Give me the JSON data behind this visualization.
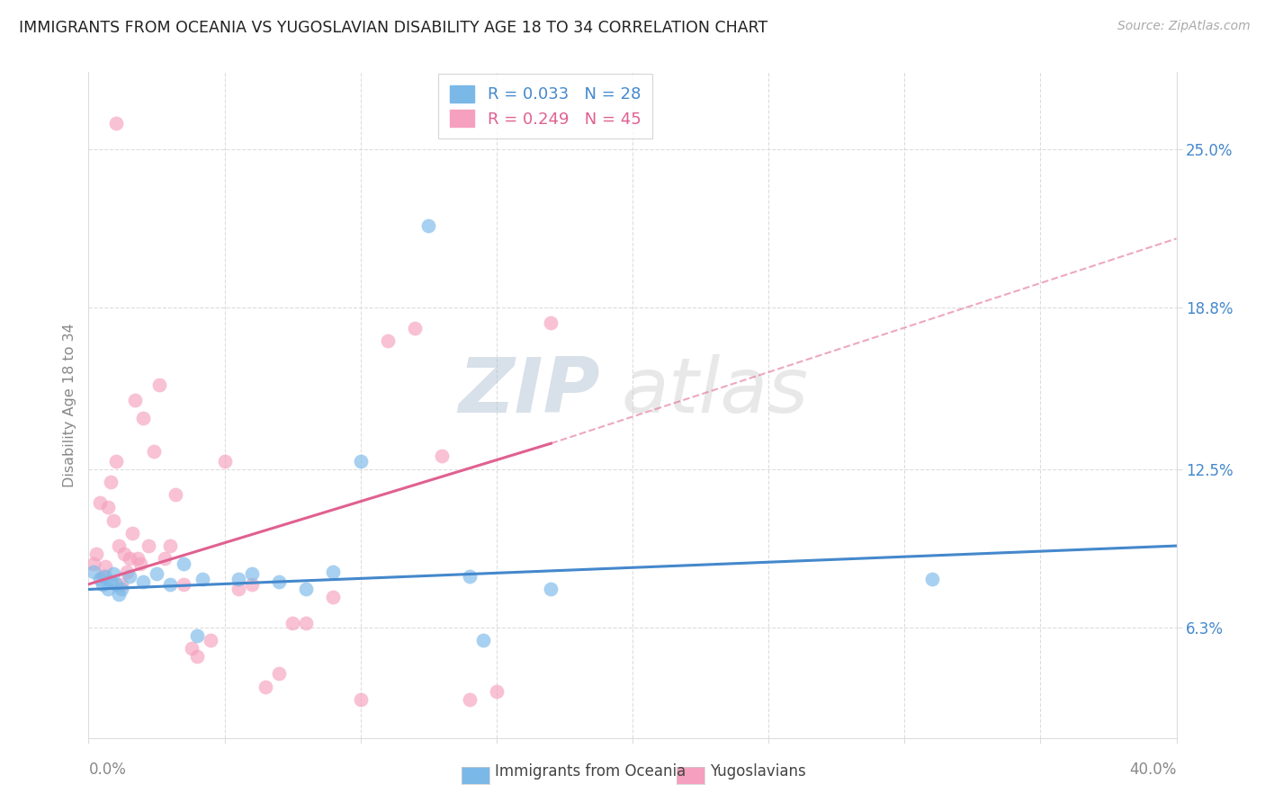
{
  "title": "IMMIGRANTS FROM OCEANIA VS YUGOSLAVIAN DISABILITY AGE 18 TO 34 CORRELATION CHART",
  "source": "Source: ZipAtlas.com",
  "ylabel": "Disability Age 18 to 34",
  "ytick_labels": [
    "6.3%",
    "12.5%",
    "18.8%",
    "25.0%"
  ],
  "ytick_values": [
    6.3,
    12.5,
    18.8,
    25.0
  ],
  "xlim": [
    0.0,
    40.0
  ],
  "ylim": [
    2.0,
    28.0
  ],
  "watermark_zip": "ZIP",
  "watermark_atlas": "atlas",
  "blue_color": "#7ab8e8",
  "pink_color": "#f5a0be",
  "blue_line_color": "#4488cc",
  "pink_line_color": "#e06090",
  "blue_scatter_x": [
    0.2,
    0.4,
    0.5,
    0.6,
    0.7,
    0.8,
    0.9,
    1.0,
    1.1,
    1.2,
    1.5,
    2.0,
    2.5,
    3.0,
    3.5,
    4.2,
    5.5,
    6.0,
    7.0,
    8.0,
    9.0,
    10.0,
    12.5,
    14.0,
    14.5,
    17.0,
    31.0,
    4.0
  ],
  "blue_scatter_y": [
    8.5,
    8.2,
    8.0,
    8.3,
    7.8,
    8.1,
    8.4,
    8.0,
    7.6,
    7.8,
    8.3,
    8.1,
    8.4,
    8.0,
    8.8,
    8.2,
    8.2,
    8.4,
    8.1,
    7.8,
    8.5,
    12.8,
    22.0,
    8.3,
    5.8,
    7.8,
    8.2,
    6.0
  ],
  "pink_scatter_x": [
    0.2,
    0.3,
    0.4,
    0.5,
    0.6,
    0.7,
    0.8,
    0.9,
    1.0,
    1.1,
    1.2,
    1.3,
    1.4,
    1.5,
    1.6,
    1.7,
    1.8,
    1.9,
    2.0,
    2.2,
    2.4,
    2.6,
    2.8,
    3.0,
    3.2,
    3.5,
    3.8,
    4.0,
    4.5,
    5.0,
    5.5,
    6.0,
    6.5,
    7.0,
    7.5,
    8.0,
    9.0,
    10.0,
    11.0,
    12.0,
    13.0,
    14.0,
    15.0,
    1.0,
    17.0
  ],
  "pink_scatter_y": [
    8.8,
    9.2,
    11.2,
    8.3,
    8.7,
    11.0,
    12.0,
    10.5,
    12.8,
    9.5,
    8.0,
    9.2,
    8.5,
    9.0,
    10.0,
    15.2,
    9.0,
    8.8,
    14.5,
    9.5,
    13.2,
    15.8,
    9.0,
    9.5,
    11.5,
    8.0,
    5.5,
    5.2,
    5.8,
    12.8,
    7.8,
    8.0,
    4.0,
    4.5,
    6.5,
    6.5,
    7.5,
    3.5,
    17.5,
    18.0,
    13.0,
    3.5,
    3.8,
    26.0,
    18.2
  ],
  "blue_line_x": [
    0.0,
    40.0
  ],
  "blue_line_y": [
    7.8,
    9.5
  ],
  "pink_solid_line_x": [
    0.0,
    17.0
  ],
  "pink_solid_line_y": [
    8.0,
    13.5
  ],
  "pink_dash_line_x": [
    17.0,
    40.0
  ],
  "pink_dash_line_y": [
    13.5,
    21.5
  ],
  "gridline_color": "#dddddd",
  "legend1_text": "R = 0.033   N = 28",
  "legend2_text": "R = 0.249   N = 45",
  "bottom_label1": "Immigrants from Oceania",
  "bottom_label2": "Yugoslavians"
}
